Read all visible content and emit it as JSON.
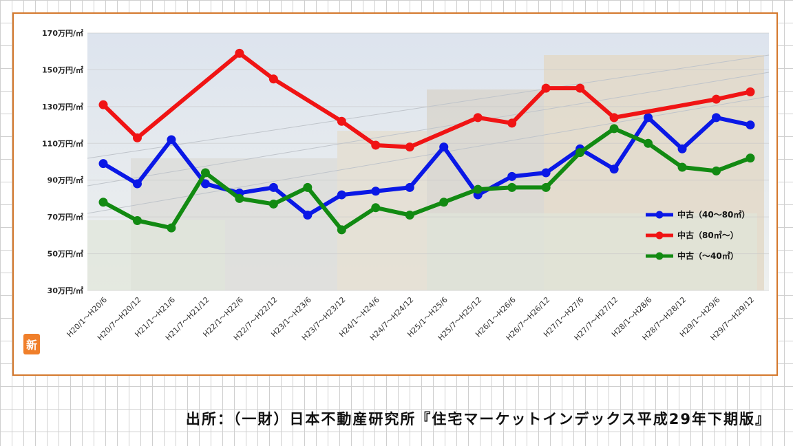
{
  "stamp": "新",
  "source": "出所：（一財）日本不動産研究所『住宅マーケットインデックス平成29年下期版』",
  "colors": {
    "frame": "#d4782c",
    "blue": "#0a18e6",
    "red": "#f01414",
    "green": "#128a12"
  },
  "chart_data": {
    "type": "line",
    "ylim": [
      30,
      170
    ],
    "yticks": [
      "170万円/㎡",
      "150万円/㎡",
      "130万円/㎡",
      "110万円/㎡",
      "90万円/㎡",
      "70万円/㎡",
      "50万円/㎡",
      "30万円/㎡"
    ],
    "ytick_values": [
      170,
      150,
      130,
      110,
      90,
      70,
      50,
      30
    ],
    "categories": [
      "H20/1～H20/6",
      "H20/7～H20/12",
      "H21/1～H21/6",
      "H21/7～H21/12",
      "H22/1～H22/6",
      "H22/7～H22/12",
      "H23/1～H23/6",
      "H23/7～H23/12",
      "H24/1～H24/6",
      "H24/7～H24/12",
      "H25/1～H25/6",
      "H25/7～H25/12",
      "H26/1～H26/6",
      "H26/7～H26/12",
      "H27/1～H27/6",
      "H27/7～H27/12",
      "H28/1～H28/6",
      "H28/7～H28/12",
      "H29/1～H29/6",
      "H29/7～H29/12"
    ],
    "legend_position": "right",
    "series": [
      {
        "name": "中古（40～80㎡）",
        "color": "#0a18e6",
        "values": [
          99,
          88,
          112,
          88,
          83,
          86,
          71,
          82,
          84,
          86,
          108,
          82,
          92,
          94,
          107,
          96,
          124,
          107,
          124,
          120
        ]
      },
      {
        "name": "中古（80㎡～）",
        "color": "#f01414",
        "values": [
          131,
          113,
          null,
          null,
          159,
          145,
          null,
          122,
          109,
          108,
          null,
          124,
          121,
          140,
          140,
          124,
          null,
          null,
          134,
          138
        ]
      },
      {
        "name": "中古（～40㎡）",
        "color": "#128a12",
        "values": [
          78,
          68,
          64,
          94,
          80,
          77,
          86,
          63,
          75,
          71,
          78,
          85,
          86,
          86,
          105,
          118,
          110,
          97,
          95,
          102
        ]
      }
    ]
  }
}
